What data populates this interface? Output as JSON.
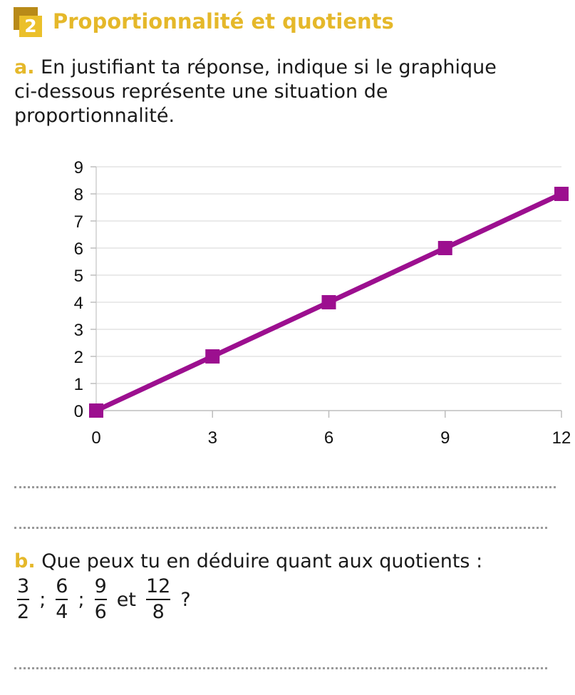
{
  "exercise": {
    "number": "2",
    "title": "Proportionnalité et quotients"
  },
  "question_a": {
    "letter": "a.",
    "lines": [
      "En justifiant ta réponse, indique si le graphique",
      "ci-dessous représente une situation de",
      "proportionnalité."
    ]
  },
  "question_b": {
    "letter": "b.",
    "text": "Que peux tu en déduire quant aux quotients :",
    "fractions": [
      {
        "num": "3",
        "den": "2"
      },
      {
        "num": "6",
        "den": "4"
      },
      {
        "num": "9",
        "den": "6"
      },
      {
        "num": "12",
        "den": "8"
      }
    ],
    "separator": ";",
    "conjunction": "et",
    "end": "?"
  },
  "chart_data": {
    "type": "line",
    "x": [
      0,
      3,
      6,
      9,
      12
    ],
    "y": [
      0,
      2,
      4,
      6,
      8
    ],
    "x_ticks": [
      "0",
      "3",
      "6",
      "9",
      "12"
    ],
    "y_ticks": [
      "0",
      "1",
      "2",
      "3",
      "4",
      "5",
      "6",
      "7",
      "8",
      "9"
    ],
    "xlim": [
      0,
      12
    ],
    "ylim": [
      0,
      9
    ],
    "grid": "horizontal",
    "marker": "square",
    "color": "#9c0f8f"
  },
  "colors": {
    "accent": "#e5b82a",
    "line": "#9c0f8f"
  }
}
